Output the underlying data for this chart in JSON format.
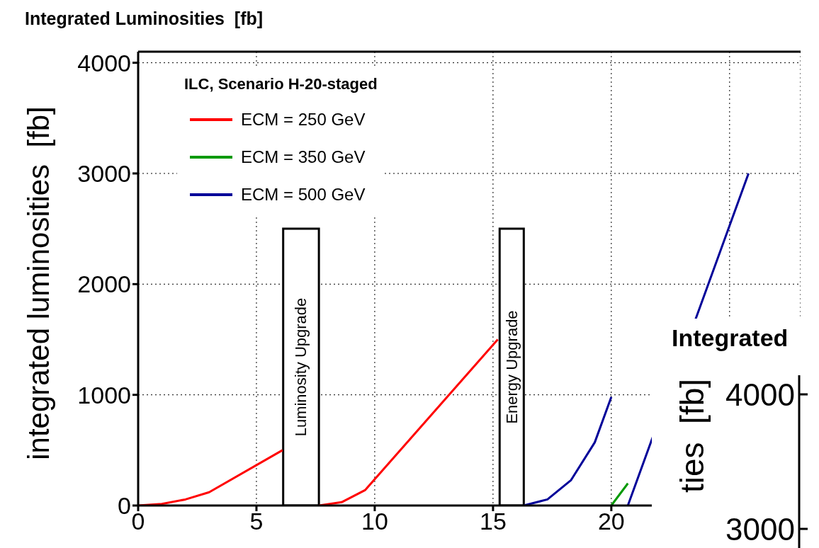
{
  "chart_data": [
    {
      "type": "line",
      "title": "Integrated Luminosities  [fb]",
      "ylabel": "integrated luminosities  [fb]",
      "legend_title": "ILC, Scenario H-20-staged",
      "xlim": [
        0,
        28
      ],
      "xticks": [
        0,
        5,
        10,
        15,
        20,
        {
          "value": 25,
          "label": null
        }
      ],
      "ylim": [
        0,
        4100
      ],
      "yticks": [
        0,
        1000,
        2000,
        3000,
        4000
      ],
      "grid": true,
      "legend": "top left",
      "marker": "none",
      "line_style": "solid",
      "series": [
        {
          "name": "ECM = 250 GeV",
          "color": "#ff0000",
          "x": [
            0,
            1,
            2,
            3,
            6.1,
            6.9,
            7.65,
            8.6,
            9.6,
            15.2
          ],
          "values": [
            0,
            15,
            55,
            120,
            500,
            null,
            0,
            30,
            140,
            1500
          ]
        },
        {
          "name": "ECM = 350 GeV",
          "color": "#009900",
          "x": [
            20,
            20.7
          ],
          "values": [
            0,
            200
          ]
        },
        {
          "name": "ECM = 500 GeV",
          "color": "#000099",
          "x": [
            16.3,
            17.3,
            18.3,
            19.3,
            20,
            20.3,
            20.7,
            25.8
          ],
          "values": [
            0,
            55,
            230,
            570,
            980,
            null,
            0,
            3000
          ]
        }
      ],
      "bands": [
        {
          "axis": "x",
          "from": 6.13,
          "to": 7.64,
          "label": "Luminosity Upgrade"
        },
        {
          "axis": "x",
          "from": 15.28,
          "to": 16.3,
          "label": "Energy Upgrade"
        }
      ]
    },
    {
      "type": "other",
      "title": "Integrated",
      "ylabel": "ties  [fb]",
      "annotations": [
        "4000",
        "3000"
      ]
    }
  ]
}
